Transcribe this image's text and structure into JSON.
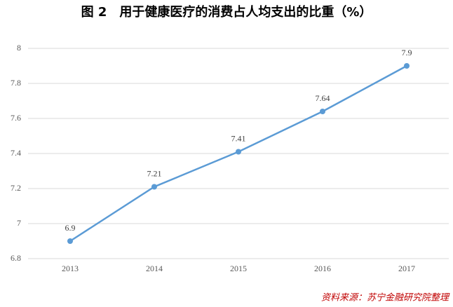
{
  "chart_data": {
    "type": "line",
    "title": "图 2　用于健康医疗的消费占人均支出的比重（%）",
    "source": "资料来源：苏宁金融研究院整理",
    "categories": [
      "2013",
      "2014",
      "2015",
      "2016",
      "2017"
    ],
    "values": [
      6.9,
      7.21,
      7.41,
      7.64,
      7.9
    ],
    "color": "#5b9bd5",
    "ylim": [
      6.8,
      8
    ],
    "yticks": [
      6.8,
      7,
      7.2,
      7.4,
      7.6,
      7.8,
      8
    ],
    "grid": true
  }
}
